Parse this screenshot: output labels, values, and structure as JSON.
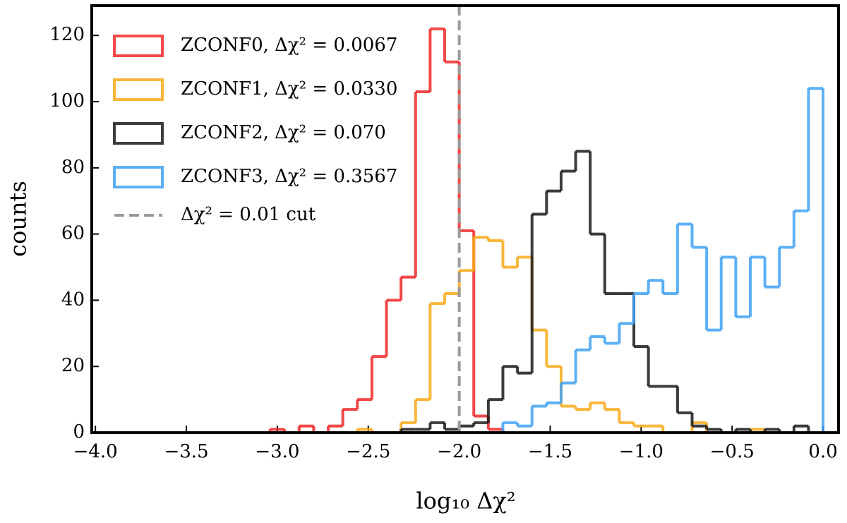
{
  "chart_data": {
    "type": "histogram",
    "xlabel": "log₁₀ Δχ²",
    "ylabel": "counts",
    "bins": [
      -4,
      -3.92,
      -3.84,
      -3.76,
      -3.68,
      -3.6,
      -3.52,
      -3.44,
      -3.36,
      -3.28,
      -3.2,
      -3.12,
      -3.04,
      -2.96,
      -2.88,
      -2.8,
      -2.72,
      -2.64,
      -2.56,
      -2.48,
      -2.4,
      -2.32,
      -2.24,
      -2.16,
      -2.08,
      -2,
      -1.92,
      -1.84,
      -1.76,
      -1.68,
      -1.6,
      -1.52,
      -1.44,
      -1.36,
      -1.28,
      -1.2,
      -1.12,
      -1.04,
      -0.96,
      -0.88,
      -0.8,
      -0.72,
      -0.64,
      -0.56,
      -0.48,
      -0.4,
      -0.32,
      -0.24,
      -0.16,
      -0.08,
      0
    ],
    "series": [
      {
        "name": "ZCONF0, Δχ² = 0.0067",
        "color": "#f02828",
        "values": [
          0,
          0,
          0,
          0,
          0,
          0,
          0,
          0,
          0,
          0,
          0,
          0,
          1,
          0,
          2,
          0,
          2,
          7,
          10,
          23,
          40,
          47,
          103,
          122,
          112,
          61,
          5,
          1,
          0,
          0,
          0,
          0,
          0,
          0,
          0,
          0,
          0,
          0,
          0,
          0,
          0,
          0,
          0,
          0,
          0,
          0,
          0,
          0,
          0,
          0
        ]
      },
      {
        "name": "ZCONF1, Δχ² = 0.0330",
        "color": "#f9a91a",
        "values": [
          0,
          0,
          0,
          0,
          0,
          0,
          0,
          0,
          0,
          0,
          0,
          0,
          0,
          0,
          0,
          0,
          0,
          0,
          1,
          0,
          0,
          3,
          10,
          39,
          42,
          49,
          59,
          58,
          50,
          53,
          31,
          20,
          8,
          7,
          9,
          7,
          3,
          2,
          2,
          0,
          0,
          3,
          0,
          0,
          0,
          1,
          0,
          0,
          0,
          0
        ]
      },
      {
        "name": "ZCONF2, Δχ² = 0.070",
        "color": "#1a1a1a",
        "values": [
          0,
          0,
          0,
          0,
          0,
          0,
          0,
          0,
          0,
          0,
          0,
          0,
          0,
          0,
          0,
          0,
          0,
          0,
          0,
          0,
          0,
          1,
          1,
          3,
          1,
          2,
          3,
          10,
          20,
          18,
          66,
          73,
          79,
          85,
          60,
          42,
          42,
          26,
          14,
          14,
          6,
          2,
          1,
          0,
          1,
          0,
          1,
          0,
          2,
          0
        ]
      },
      {
        "name": "ZCONF3, Δχ² = 0.3567",
        "color": "#3fa2f5",
        "values": [
          0,
          0,
          0,
          0,
          0,
          0,
          0,
          0,
          0,
          0,
          0,
          0,
          0,
          0,
          0,
          0,
          0,
          0,
          0,
          0,
          0,
          0,
          0,
          0,
          0,
          0,
          0,
          0,
          3,
          2,
          8,
          9,
          15,
          25,
          29,
          27,
          33,
          42,
          46,
          42,
          63,
          56,
          31,
          53,
          35,
          53,
          44,
          56,
          67,
          104
        ]
      }
    ],
    "cut": {
      "x": -2,
      "label": "Δχ² = 0.01 cut",
      "color": "#9a9a9a"
    },
    "xlim": [
      -4.02,
      0.085
    ],
    "ylim": [
      0,
      129
    ],
    "xticks": [
      {
        "value": -4,
        "label": "−4.0"
      },
      {
        "value": -3.5,
        "label": "−3.5"
      },
      {
        "value": -3,
        "label": "−3.0"
      },
      {
        "value": -2.5,
        "label": "−2.5"
      },
      {
        "value": -2,
        "label": "−2.0"
      },
      {
        "value": -1.5,
        "label": "−1.5"
      },
      {
        "value": -1,
        "label": "−1.0"
      },
      {
        "value": -0.5,
        "label": "−0.5"
      },
      {
        "value": 0,
        "label": "0.0"
      }
    ],
    "yticks": [
      0,
      20,
      40,
      60,
      80,
      100,
      120
    ],
    "legend": "upper left"
  }
}
